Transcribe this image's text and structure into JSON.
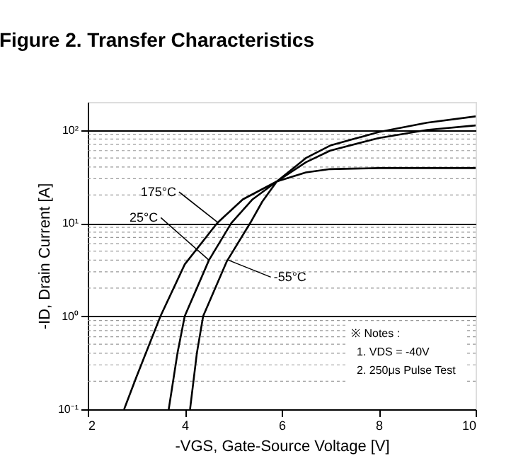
{
  "chart_data": {
    "type": "line",
    "title": "Figure 2. Transfer Characteristics",
    "xlabel": "-VGS, Gate-Source Voltage [V]",
    "ylabel": "-ID, Drain Current [A]",
    "xlim": [
      2,
      10
    ],
    "xticks": [
      2,
      4,
      6,
      8,
      10
    ],
    "ylim": [
      0.1,
      200
    ],
    "yticks": [
      {
        "value": 0.1,
        "label": "10⁻¹"
      },
      {
        "value": 1,
        "label": "10⁰"
      },
      {
        "value": 10,
        "label": "10¹"
      },
      {
        "value": 100,
        "label": "10²"
      }
    ],
    "log": "y",
    "grid": "y",
    "marker": "none",
    "line_style": "solid",
    "series": [
      {
        "color": "#000000",
        "x": [
          2.75,
          3.0,
          3.5,
          4.0,
          4.67,
          5.2,
          5.9,
          6.5,
          7.0,
          8.0,
          10.0
        ],
        "values": [
          0.1,
          0.22,
          1,
          3.6,
          10,
          18,
          28,
          35,
          38,
          39,
          39
        ]
      },
      {
        "color": "#000000",
        "x": [
          3.67,
          3.85,
          4.0,
          4.5,
          4.96,
          5.4,
          5.9,
          6.5,
          7.0,
          8.0,
          9.0,
          10.0
        ],
        "values": [
          0.1,
          0.4,
          1,
          4,
          10,
          18,
          28,
          45,
          60,
          82,
          100,
          112
        ]
      },
      {
        "color": "#000000",
        "x": [
          4.11,
          4.25,
          4.38,
          4.87,
          5.35,
          5.6,
          5.9,
          6.5,
          7.0,
          8.0,
          9.0,
          10.0
        ],
        "values": [
          0.1,
          0.4,
          1,
          3.9,
          10,
          17,
          28,
          50,
          68,
          95,
          120,
          140
        ]
      }
    ],
    "annotations": [
      {
        "text": "175°C",
        "x": 4.7,
        "y": 10
      },
      {
        "text": "25°C",
        "x": 4.5,
        "y": 4
      },
      {
        "text": "-55°C",
        "x": 4.9,
        "y": 4
      },
      "※ Notes :",
      "1. VDS = -40V",
      "2. 250μs Pulse Test"
    ]
  }
}
